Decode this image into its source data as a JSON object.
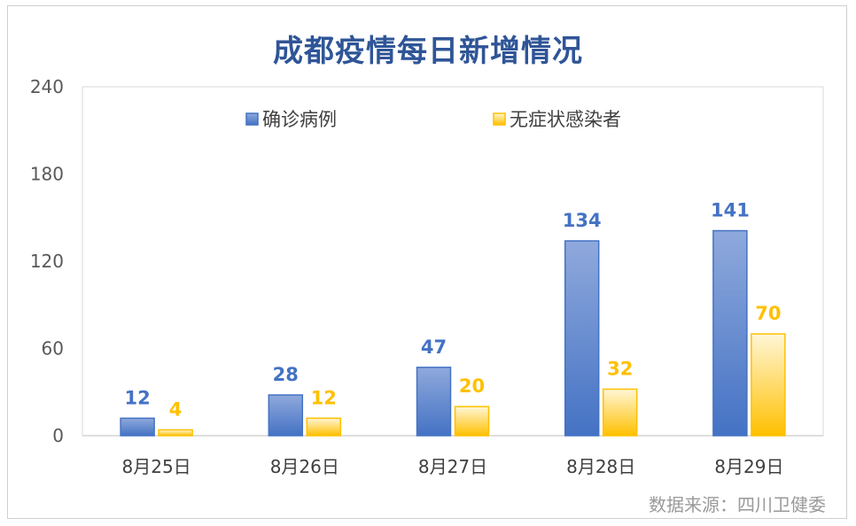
{
  "title": "成都疫情每日新增情况",
  "source": "数据来源：四川卫健委",
  "colors": {
    "confirmed": "#4472c4",
    "asymptomatic": "#ffc000",
    "title": "#2f5597"
  },
  "chart_data": {
    "type": "bar",
    "title": "成都疫情每日新增情况",
    "categories": [
      "8月25日",
      "8月26日",
      "8月27日",
      "8月28日",
      "8月29日"
    ],
    "series": [
      {
        "name": "确诊病例",
        "values": [
          12,
          28,
          47,
          134,
          141
        ]
      },
      {
        "name": "无症状感染者",
        "values": [
          4,
          12,
          20,
          32,
          70
        ]
      }
    ],
    "ylim": [
      0,
      240
    ],
    "yticks": [
      0,
      60,
      120,
      180,
      240
    ],
    "grid": false,
    "legend": "top-center",
    "data_labels": true
  }
}
